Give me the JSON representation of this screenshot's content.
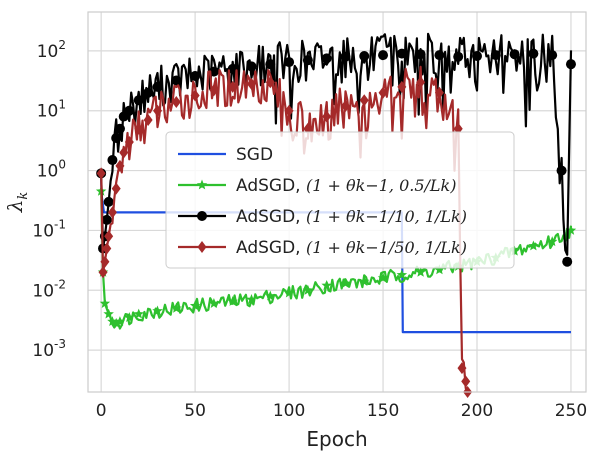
{
  "chart_data": {
    "type": "line",
    "xlabel": "Epoch",
    "ylabel": "λ",
    "ylabel_sub": "k",
    "xlim": [
      -7,
      258
    ],
    "ylim_log10": [
      -3.7,
      2.65
    ],
    "yscale": "log",
    "grid": true,
    "legend_position": "center",
    "x_ticks": [
      0,
      50,
      100,
      150,
      200,
      250
    ],
    "x_tick_labels": [
      "0",
      "50",
      "100",
      "150",
      "200",
      "250"
    ],
    "y_ticks_log10": [
      -3,
      -2,
      -1,
      0,
      1,
      2
    ],
    "y_tick_bases": [
      "10",
      "10",
      "10",
      "10",
      "10",
      "10"
    ],
    "y_tick_exps": [
      "-3",
      "-2",
      "-1",
      "0",
      "1",
      "2"
    ],
    "series": [
      {
        "name": "SGD",
        "label_math": "",
        "color": "#1f4fe0",
        "marker": "none",
        "x": [
          0,
          0.2,
          1.5,
          4,
          100,
          120,
          120.5,
          160,
          160.5,
          250
        ],
        "y": [
          0.9,
          0.4,
          0.2,
          0.2,
          0.2,
          0.2,
          0.2,
          0.2,
          0.002,
          0.002
        ]
      },
      {
        "name": "AdSGD, ",
        "label_math": "(1 + θk−1, 0.5/Lk)",
        "color": "#2ec02e",
        "marker": "star",
        "x": [
          0,
          1,
          2,
          4,
          6,
          8,
          10,
          15,
          20,
          30,
          40,
          50,
          60,
          70,
          80,
          90,
          100,
          110,
          120,
          130,
          140,
          150,
          160,
          170,
          180,
          190,
          200,
          210,
          220,
          230,
          240,
          250
        ],
        "y": [
          0.45,
          0.02,
          0.006,
          0.004,
          0.003,
          0.0028,
          0.003,
          0.0035,
          0.004,
          0.0045,
          0.005,
          0.0055,
          0.006,
          0.0065,
          0.007,
          0.008,
          0.009,
          0.01,
          0.012,
          0.013,
          0.014,
          0.016,
          0.018,
          0.02,
          0.022,
          0.025,
          0.03,
          0.035,
          0.045,
          0.055,
          0.065,
          0.1
        ]
      },
      {
        "name": "AdSGD, ",
        "label_math": "(1 + θk−1/10, 1/Lk)",
        "color": "#000000",
        "marker": "circle",
        "x": [
          0,
          1,
          2,
          3,
          4,
          6,
          8,
          10,
          12,
          15,
          20,
          25,
          30,
          40,
          50,
          60,
          70,
          80,
          90,
          100,
          110,
          120,
          130,
          140,
          150,
          160,
          170,
          180,
          190,
          200,
          210,
          220,
          230,
          240,
          245,
          248,
          250
        ],
        "y": [
          0.9,
          0.05,
          0.08,
          0.15,
          0.3,
          1.5,
          3.5,
          5,
          8,
          10,
          15,
          20,
          25,
          32,
          38,
          45,
          50,
          55,
          60,
          65,
          70,
          75,
          80,
          82,
          85,
          90,
          88,
          85,
          80,
          82,
          85,
          88,
          90,
          85,
          1,
          0.03,
          60
        ]
      },
      {
        "name": "AdSGD, ",
        "label_math": "(1 + θk−1/50, 1/Lk)",
        "color": "#a52a2a",
        "marker": "diamond",
        "x": [
          0,
          1,
          2,
          3,
          4,
          6,
          8,
          10,
          12,
          15,
          20,
          25,
          30,
          40,
          50,
          60,
          70,
          80,
          90,
          100,
          110,
          120,
          130,
          140,
          150,
          160,
          170,
          180,
          190,
          192,
          194,
          195
        ],
        "y": [
          0.9,
          0.02,
          0.03,
          0.05,
          0.08,
          0.2,
          0.5,
          1.2,
          2,
          3,
          5,
          7,
          10,
          14,
          18,
          22,
          25,
          28,
          30,
          10,
          5,
          8,
          12,
          15,
          20,
          25,
          30,
          20,
          5,
          0.0005,
          0.0003,
          0.0002
        ]
      }
    ]
  }
}
